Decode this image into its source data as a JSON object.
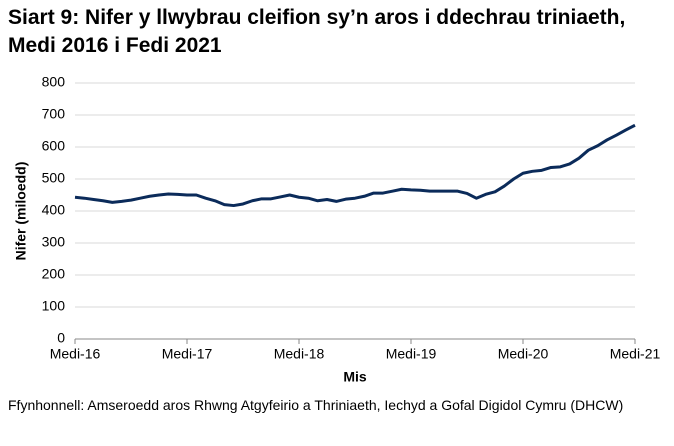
{
  "chart_data": {
    "type": "line",
    "title": "Siart 9: Nifer y llwybrau cleifion sy’n aros i ddechrau triniaeth, Medi 2016 i Fedi 2021",
    "x_label": "Mis",
    "y_label": "Nifer (miloedd)",
    "source": "Ffynhonnell: Amseroedd aros Rhwng Atgyfeirio a Thriniaeth, Iechyd a Gofal Digidol Cymru (DHCW)",
    "categories": [
      "Medi-16",
      null,
      null,
      null,
      null,
      null,
      null,
      null,
      null,
      null,
      null,
      null,
      "Medi-17",
      null,
      null,
      null,
      null,
      null,
      null,
      null,
      null,
      null,
      null,
      null,
      "Medi-18",
      null,
      null,
      null,
      null,
      null,
      null,
      null,
      null,
      null,
      null,
      null,
      "Medi-19",
      null,
      null,
      null,
      null,
      null,
      null,
      null,
      null,
      null,
      null,
      null,
      "Medi-20",
      null,
      null,
      null,
      null,
      null,
      null,
      null,
      null,
      null,
      null,
      null,
      "Medi-21"
    ],
    "series": [
      {
        "color": "#0b2b5a",
        "values": [
          443,
          440,
          436,
          432,
          427,
          430,
          434,
          440,
          446,
          450,
          453,
          452,
          450,
          450,
          440,
          432,
          420,
          417,
          422,
          432,
          438,
          438,
          444,
          450,
          443,
          440,
          432,
          436,
          430,
          437,
          440,
          446,
          456,
          456,
          462,
          468,
          466,
          465,
          462,
          462,
          462,
          462,
          455,
          440,
          452,
          460,
          478,
          500,
          518,
          524,
          527,
          536,
          538,
          547,
          565,
          590,
          604,
          622,
          637,
          653,
          668
        ]
      }
    ],
    "ylim": [
      0,
      800
    ],
    "yticks": [
      0,
      100,
      200,
      300,
      400,
      500,
      600,
      700,
      800
    ],
    "grid": true
  }
}
